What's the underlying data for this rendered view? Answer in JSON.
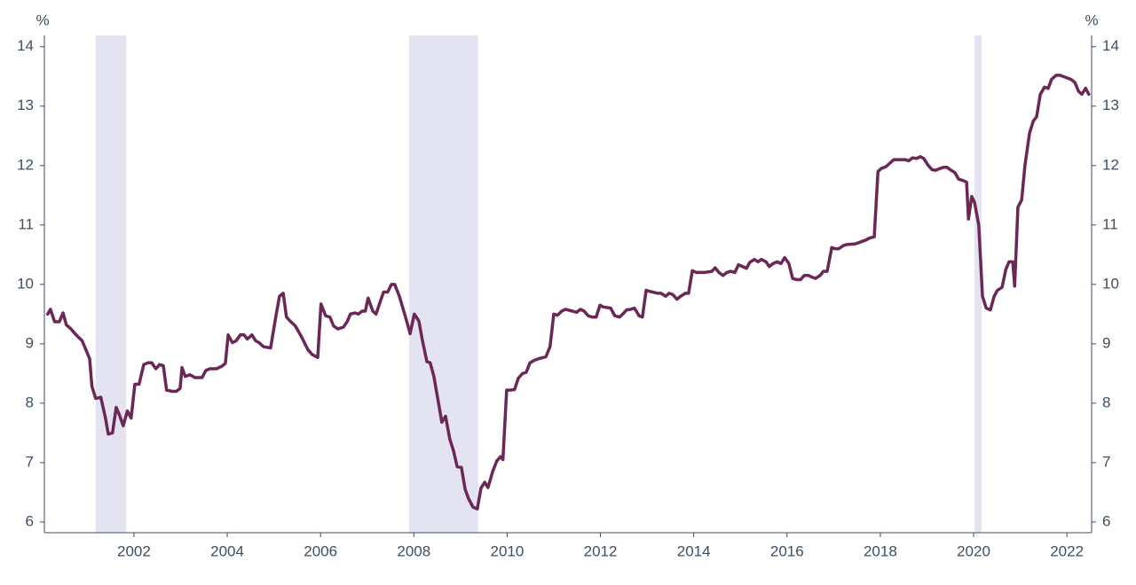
{
  "chart_data": {
    "type": "line",
    "y_label": "%",
    "y2_label": "%",
    "color": "#6b2857",
    "shade_color": "#e3e3f1",
    "shaded_periods": [
      [
        2001.18,
        2001.83
      ],
      [
        2007.9,
        2009.38
      ],
      [
        2020.02,
        2020.17
      ]
    ],
    "xlim": [
      2000.08,
      2022.53
    ],
    "xticks": [
      2002,
      2004,
      2006,
      2008,
      2010,
      2012,
      2014,
      2016,
      2018,
      2020,
      2022
    ],
    "ylim": [
      5.82,
      14.19
    ],
    "yticks": [
      6,
      7,
      8,
      9,
      10,
      11,
      12,
      13,
      14
    ],
    "y2lim": [
      5.82,
      14.19
    ],
    "y2ticks": [
      6,
      7,
      8,
      9,
      10,
      11,
      12,
      13,
      14
    ],
    "x": [
      2000.15,
      2000.21,
      2000.3,
      2000.4,
      2000.48,
      2000.55,
      2000.65,
      2000.76,
      2000.89,
      2000.97,
      2001.05,
      2001.1,
      2001.18,
      2001.29,
      2001.39,
      2001.45,
      2001.54,
      2001.62,
      2001.69,
      2001.77,
      2001.86,
      2001.94,
      2002.02,
      2002.11,
      2002.21,
      2002.3,
      2002.38,
      2002.47,
      2002.55,
      2002.63,
      2002.7,
      2002.82,
      2002.91,
      2002.99,
      2003.03,
      2003.1,
      2003.2,
      2003.31,
      2003.46,
      2003.54,
      2003.63,
      2003.77,
      2003.88,
      2003.96,
      2004.02,
      2004.11,
      2004.19,
      2004.28,
      2004.36,
      2004.43,
      2004.53,
      2004.61,
      2004.68,
      2004.78,
      2004.93,
      2005.04,
      2005.12,
      2005.2,
      2005.27,
      2005.35,
      2005.46,
      2005.59,
      2005.73,
      2005.82,
      2005.94,
      2006.01,
      2006.11,
      2006.2,
      2006.28,
      2006.37,
      2006.49,
      2006.57,
      2006.64,
      2006.74,
      2006.81,
      2006.89,
      2006.96,
      2007.02,
      2007.12,
      2007.19,
      2007.35,
      2007.44,
      2007.52,
      2007.59,
      2007.69,
      2007.84,
      2007.92,
      2008.01,
      2008.11,
      2008.18,
      2008.28,
      2008.35,
      2008.43,
      2008.53,
      2008.6,
      2008.68,
      2008.77,
      2008.85,
      2008.93,
      2009.02,
      2009.1,
      2009.17,
      2009.27,
      2009.36,
      2009.44,
      2009.52,
      2009.59,
      2009.69,
      2009.78,
      2009.86,
      2009.91,
      2009.99,
      2010.07,
      2010.16,
      2010.24,
      2010.33,
      2010.41,
      2010.49,
      2010.58,
      2010.68,
      2010.83,
      2010.92,
      2011.0,
      2011.08,
      2011.17,
      2011.25,
      2011.4,
      2011.49,
      2011.57,
      2011.65,
      2011.74,
      2011.82,
      2011.91,
      2011.99,
      2012.06,
      2012.22,
      2012.31,
      2012.41,
      2012.48,
      2012.56,
      2012.65,
      2012.73,
      2012.83,
      2012.9,
      2012.98,
      2013.07,
      2013.23,
      2013.3,
      2013.4,
      2013.47,
      2013.55,
      2013.64,
      2013.72,
      2013.82,
      2013.89,
      2013.97,
      2014.06,
      2014.22,
      2014.39,
      2014.46,
      2014.54,
      2014.63,
      2014.71,
      2014.79,
      2014.88,
      2014.96,
      2015.05,
      2015.13,
      2015.2,
      2015.3,
      2015.38,
      2015.45,
      2015.55,
      2015.62,
      2015.7,
      2015.79,
      2015.87,
      2015.95,
      2016.04,
      2016.12,
      2016.21,
      2016.29,
      2016.37,
      2016.46,
      2016.54,
      2016.61,
      2016.71,
      2016.78,
      2016.86,
      2016.96,
      2017.03,
      2017.11,
      2017.2,
      2017.28,
      2017.45,
      2017.53,
      2017.6,
      2017.7,
      2017.77,
      2017.87,
      2017.95,
      2018.02,
      2018.12,
      2018.19,
      2018.29,
      2018.44,
      2018.53,
      2018.61,
      2018.69,
      2018.78,
      2018.86,
      2018.93,
      2019.03,
      2019.11,
      2019.18,
      2019.28,
      2019.35,
      2019.43,
      2019.52,
      2019.6,
      2019.68,
      2019.77,
      2019.85,
      2019.89,
      2019.96,
      2020.02,
      2020.11,
      2020.19,
      2020.27,
      2020.36,
      2020.44,
      2020.51,
      2020.61,
      2020.69,
      2020.76,
      2020.84,
      2020.88,
      2020.95,
      2021.03,
      2021.1,
      2021.2,
      2021.28,
      2021.35,
      2021.43,
      2021.52,
      2021.6,
      2021.67,
      2021.77,
      2021.85,
      2021.92,
      2022.02,
      2022.09,
      2022.17,
      2022.25,
      2022.32,
      2022.4,
      2022.47
    ],
    "values": [
      9.5,
      9.58,
      9.37,
      9.37,
      9.52,
      9.32,
      9.25,
      9.15,
      9.05,
      8.9,
      8.75,
      8.28,
      8.08,
      8.1,
      7.75,
      7.48,
      7.5,
      7.93,
      7.8,
      7.62,
      7.87,
      7.75,
      8.32,
      8.32,
      8.65,
      8.68,
      8.68,
      8.58,
      8.65,
      8.63,
      8.22,
      8.2,
      8.2,
      8.25,
      8.6,
      8.45,
      8.48,
      8.43,
      8.43,
      8.55,
      8.58,
      8.58,
      8.62,
      8.67,
      9.15,
      9.02,
      9.05,
      9.15,
      9.15,
      9.08,
      9.15,
      9.05,
      9.02,
      8.95,
      8.93,
      9.45,
      9.8,
      9.85,
      9.45,
      9.38,
      9.3,
      9.12,
      8.9,
      8.82,
      8.77,
      9.67,
      9.47,
      9.45,
      9.3,
      9.25,
      9.28,
      9.37,
      9.5,
      9.52,
      9.5,
      9.55,
      9.55,
      9.77,
      9.55,
      9.5,
      9.87,
      9.87,
      10.0,
      10.0,
      9.8,
      9.4,
      9.17,
      9.5,
      9.38,
      9.07,
      8.7,
      8.68,
      8.45,
      8.0,
      7.68,
      7.78,
      7.4,
      7.2,
      6.93,
      6.92,
      6.55,
      6.4,
      6.25,
      6.22,
      6.57,
      6.67,
      6.58,
      6.85,
      7.03,
      7.1,
      7.05,
      8.22,
      8.22,
      8.23,
      8.42,
      8.5,
      8.52,
      8.68,
      8.72,
      8.75,
      8.78,
      8.95,
      9.5,
      9.48,
      9.55,
      9.58,
      9.55,
      9.53,
      9.58,
      9.55,
      9.47,
      9.45,
      9.45,
      9.65,
      9.62,
      9.6,
      9.47,
      9.45,
      9.5,
      9.57,
      9.58,
      9.6,
      9.47,
      9.45,
      9.9,
      9.88,
      9.85,
      9.85,
      9.8,
      9.85,
      9.83,
      9.75,
      9.8,
      9.85,
      9.85,
      10.23,
      10.2,
      10.2,
      10.22,
      10.28,
      10.2,
      10.15,
      10.2,
      10.22,
      10.2,
      10.33,
      10.3,
      10.27,
      10.37,
      10.42,
      10.38,
      10.42,
      10.38,
      10.3,
      10.35,
      10.38,
      10.35,
      10.45,
      10.35,
      10.1,
      10.08,
      10.08,
      10.15,
      10.15,
      10.12,
      10.1,
      10.15,
      10.22,
      10.22,
      10.62,
      10.6,
      10.6,
      10.65,
      10.67,
      10.68,
      10.7,
      10.72,
      10.75,
      10.78,
      10.8,
      11.9,
      11.95,
      11.98,
      12.03,
      12.1,
      12.1,
      12.1,
      12.08,
      12.13,
      12.12,
      12.15,
      12.12,
      12.0,
      11.93,
      11.92,
      11.95,
      11.97,
      11.97,
      11.92,
      11.88,
      11.77,
      11.75,
      11.72,
      11.1,
      11.48,
      11.38,
      11.0,
      9.8,
      9.6,
      9.57,
      9.8,
      9.9,
      9.95,
      10.25,
      10.38,
      10.38,
      9.97,
      11.3,
      11.42,
      12.0,
      12.55,
      12.75,
      12.82,
      13.2,
      13.32,
      13.3,
      13.45,
      13.52,
      13.52,
      13.5,
      13.47,
      13.45,
      13.4,
      13.25,
      13.2,
      13.3,
      13.2
    ]
  }
}
